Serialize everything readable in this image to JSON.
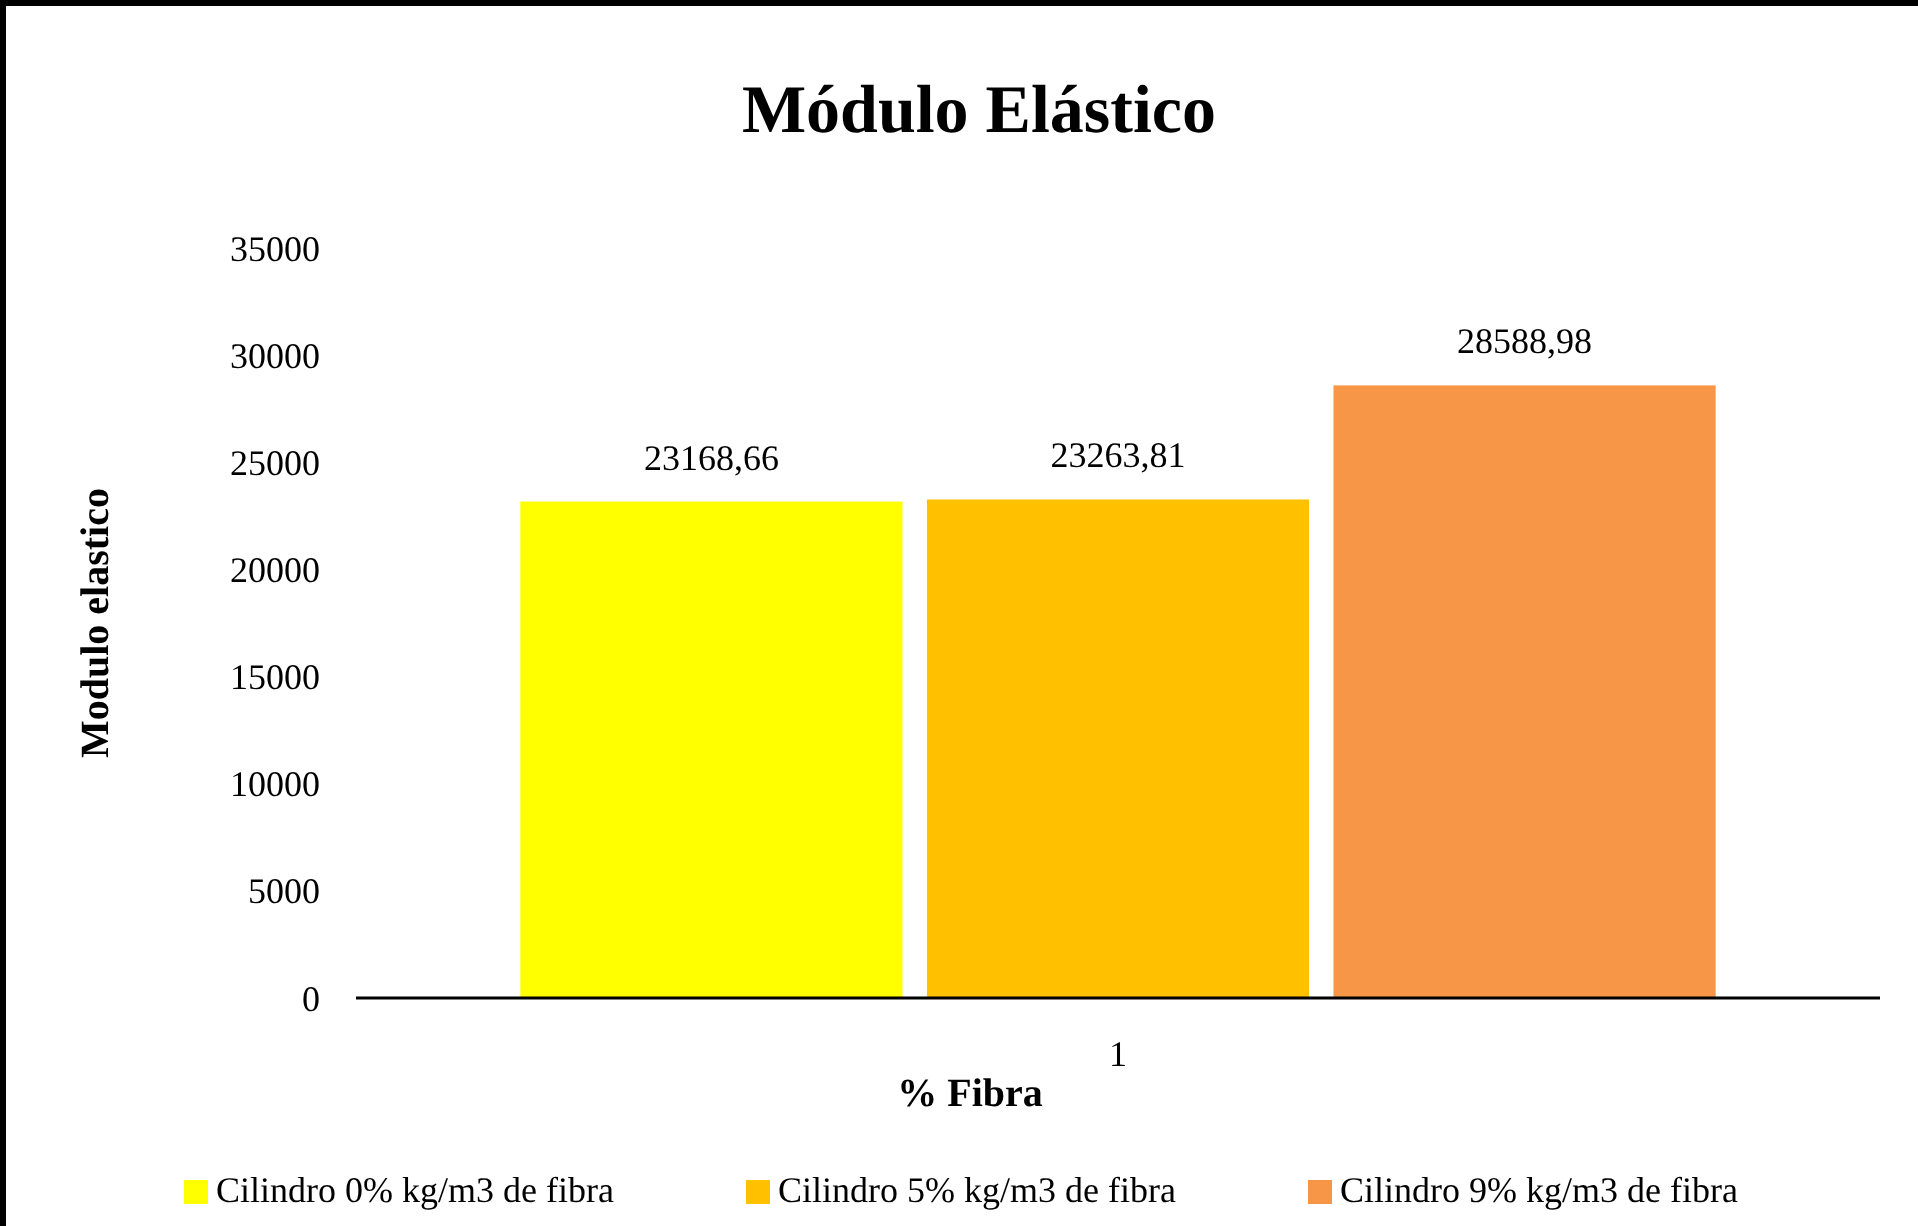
{
  "chart_data": {
    "type": "bar",
    "title": "Módulo Elástico",
    "xlabel": "% Fibra",
    "ylabel": "Modulo elastico",
    "categories": [
      "1"
    ],
    "series": [
      {
        "name": "Cilindro 0% kg/m3 de fibra",
        "color": "#ffff00",
        "values": [
          23168.66
        ],
        "value_labels": [
          "23168,66"
        ]
      },
      {
        "name": "Cilindro 5% kg/m3 de fibra",
        "color": "#ffc000",
        "values": [
          23263.81
        ],
        "value_labels": [
          "23263,81"
        ]
      },
      {
        "name": "Cilindro 9% kg/m3 de fibra",
        "color": "#f79646",
        "values": [
          28588.98
        ],
        "value_labels": [
          "28588,98"
        ]
      }
    ],
    "ylim": [
      0,
      35000
    ],
    "yticks": [
      0,
      5000,
      10000,
      15000,
      20000,
      25000,
      30000,
      35000
    ],
    "grid": false,
    "legend": "bottom"
  }
}
